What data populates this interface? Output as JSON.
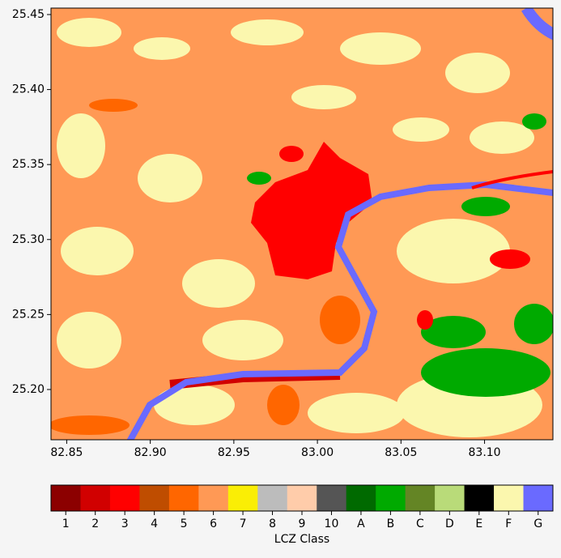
{
  "chart_data": {
    "type": "raster",
    "xlim": [
      82.8406,
      83.1409
    ],
    "ylim": [
      25.1665,
      25.4543
    ],
    "xticks": [
      82.85,
      {
        "value": 82.9,
        "label": "82.90"
      },
      82.95,
      {
        "value": 83.0,
        "label": "83.00"
      },
      83.05,
      {
        "value": 83.1,
        "label": "83.10"
      }
    ],
    "yticks": [
      {
        "value": 25.2,
        "label": "25.20"
      },
      25.25,
      {
        "value": 25.3,
        "label": "25.30"
      },
      25.35,
      {
        "value": 25.4,
        "label": "25.40"
      },
      25.45
    ],
    "colorbar": {
      "label": "LCZ Class",
      "categories": [
        "1",
        "2",
        "3",
        "4",
        "5",
        "6",
        "7",
        "8",
        "9",
        "10",
        "A",
        "B",
        "C",
        "D",
        "E",
        "F",
        "G"
      ],
      "colors": [
        "#8c0000",
        "#d10000",
        "#ff0000",
        "#bf4d00",
        "#ff6600",
        "#ff9955",
        "#faee05",
        "#bcbcbc",
        "#ffccaa",
        "#555555",
        "#006a00",
        "#00aa00",
        "#648525",
        "#b9db79",
        "#000000",
        "#fbf7ae",
        "#6a6aff"
      ]
    }
  }
}
